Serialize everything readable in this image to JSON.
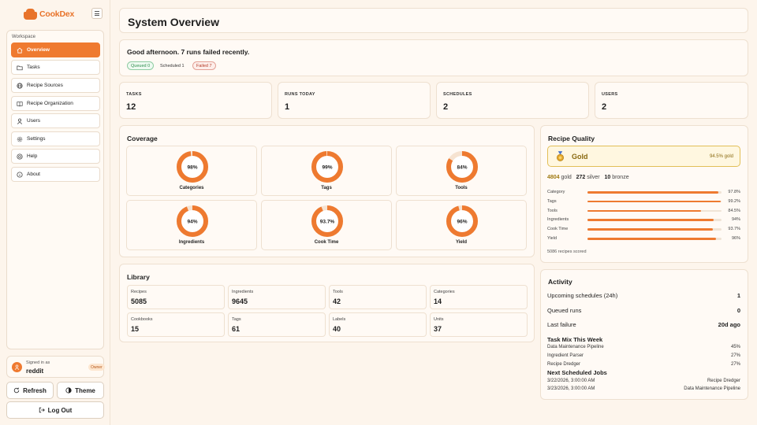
{
  "brand": {
    "name": "CookDex"
  },
  "sidebar": {
    "section_label": "Workspace",
    "items": [
      {
        "label": "Overview",
        "icon": "home-icon",
        "active": true
      },
      {
        "label": "Tasks",
        "icon": "folder-icon"
      },
      {
        "label": "Recipe Sources",
        "icon": "globe-icon"
      },
      {
        "label": "Recipe Organization",
        "icon": "book-icon"
      },
      {
        "label": "Users",
        "icon": "user-icon"
      },
      {
        "label": "Settings",
        "icon": "gear-icon"
      },
      {
        "label": "Help",
        "icon": "help-icon"
      },
      {
        "label": "About",
        "icon": "info-icon"
      }
    ],
    "user": {
      "caption": "Signed in as",
      "name": "reddit",
      "role": "Owner"
    },
    "refresh_label": "Refresh",
    "theme_label": "Theme",
    "logout_label": "Log Out"
  },
  "header": {
    "title": "System Overview"
  },
  "greeting": {
    "message": "Good afternoon. 7 runs failed recently.",
    "pills": {
      "queued": "Queued 0",
      "scheduled": "Scheduled 1",
      "failed": "Failed 7"
    }
  },
  "stats": [
    {
      "label": "TASKS",
      "value": "12"
    },
    {
      "label": "RUNS TODAY",
      "value": "1"
    },
    {
      "label": "SCHEDULES",
      "value": "2"
    },
    {
      "label": "USERS",
      "value": "2"
    }
  ],
  "coverage": {
    "title": "Coverage",
    "items": [
      {
        "name": "Categories",
        "label": "98%",
        "percent": 98
      },
      {
        "name": "Tags",
        "label": "99%",
        "percent": 99
      },
      {
        "name": "Tools",
        "label": "84%",
        "percent": 84
      },
      {
        "name": "Ingredients",
        "label": "94%",
        "percent": 94
      },
      {
        "name": "Cook Time",
        "label": "93.7%",
        "percent": 93.7
      },
      {
        "name": "Yield",
        "label": "96%",
        "percent": 96
      }
    ]
  },
  "library": {
    "title": "Library",
    "items": [
      {
        "label": "Recipes",
        "value": "5085"
      },
      {
        "label": "Ingredients",
        "value": "9645"
      },
      {
        "label": "Tools",
        "value": "42"
      },
      {
        "label": "Categories",
        "value": "14"
      },
      {
        "label": "Cookbooks",
        "value": "15"
      },
      {
        "label": "Tags",
        "value": "61"
      },
      {
        "label": "Labels",
        "value": "40"
      },
      {
        "label": "Units",
        "value": "37"
      }
    ]
  },
  "quality": {
    "title": "Recipe Quality",
    "tier": "Gold",
    "tier_percent": "94.5% gold",
    "medal_icon": "medal-icon",
    "counts": {
      "gold": "4804",
      "gold_label": "gold",
      "silver": "272",
      "silver_label": "silver",
      "bronze": "10",
      "bronze_label": "bronze"
    },
    "metrics": [
      {
        "name": "Category",
        "label": "97.8%",
        "percent": 97.8
      },
      {
        "name": "Tags",
        "label": "99.2%",
        "percent": 99.2
      },
      {
        "name": "Tools",
        "label": "84.5%",
        "percent": 84.5
      },
      {
        "name": "Ingredients",
        "label": "94%",
        "percent": 94
      },
      {
        "name": "Cook Time",
        "label": "93.7%",
        "percent": 93.7
      },
      {
        "name": "Yield",
        "label": "96%",
        "percent": 96
      }
    ],
    "footnote": "5086 recipes scored"
  },
  "activity": {
    "title": "Activity",
    "rows": [
      {
        "label": "Upcoming schedules (24h)",
        "value": "1"
      },
      {
        "label": "Queued runs",
        "value": "0"
      },
      {
        "label": "Last failure",
        "value": "20d ago"
      }
    ],
    "task_mix_title": "Task Mix This Week",
    "task_mix": [
      {
        "name": "Data Maintenance Pipeline",
        "value": "45%"
      },
      {
        "name": "Ingredient Parser",
        "value": "27%"
      },
      {
        "name": "Recipe Dredger",
        "value": "27%"
      }
    ],
    "next_jobs_title": "Next Scheduled Jobs",
    "next_jobs": [
      {
        "time": "3/22/2026, 3:00:00 AM",
        "name": "Recipe Dredger"
      },
      {
        "time": "3/23/2026, 3:00:00 AM",
        "name": "Data Maintenance Pipeline"
      }
    ]
  },
  "colors": {
    "accent": "#ef7a30",
    "background": "#fdf5ec",
    "success": "#2f8f4e",
    "danger": "#c0392b",
    "gold": "#e2bf57"
  }
}
